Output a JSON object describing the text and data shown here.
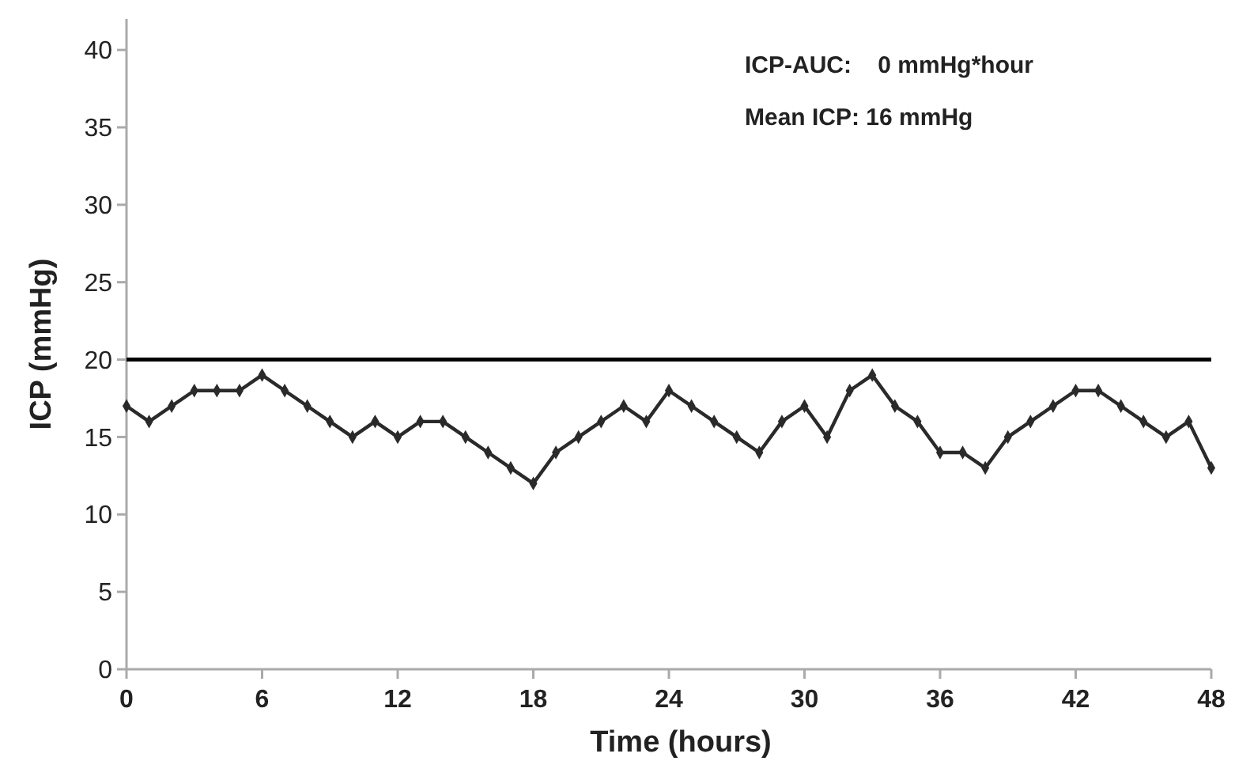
{
  "chart_data": {
    "type": "line",
    "xlabel": "Time (hours)",
    "ylabel": "ICP (mmHg)",
    "x": [
      0,
      1,
      2,
      3,
      4,
      5,
      6,
      7,
      8,
      9,
      10,
      11,
      12,
      13,
      14,
      15,
      16,
      17,
      18,
      19,
      20,
      21,
      22,
      23,
      24,
      25,
      26,
      27,
      28,
      29,
      30,
      31,
      32,
      33,
      34,
      35,
      36,
      37,
      38,
      39,
      40,
      41,
      42,
      43,
      44,
      45,
      46,
      47,
      48
    ],
    "series": [
      {
        "color": "#2a2a2a",
        "values": [
          17,
          16,
          17,
          18,
          18,
          18,
          19,
          18,
          17,
          16,
          15,
          16,
          15,
          16,
          16,
          15,
          14,
          13,
          12,
          14,
          15,
          16,
          17,
          16,
          18,
          17,
          16,
          15,
          14,
          16,
          17,
          15,
          18,
          19,
          17,
          16,
          14,
          14,
          13,
          15,
          16,
          17,
          18,
          18,
          17,
          16,
          15,
          16,
          13
        ]
      }
    ],
    "xlim": [
      0,
      48
    ],
    "xticks": [
      0,
      6,
      12,
      18,
      24,
      30,
      36,
      42,
      48
    ],
    "ylim": [
      0,
      42
    ],
    "yticks": [
      0,
      5,
      10,
      15,
      20,
      25,
      30,
      35,
      40
    ],
    "ref_lines": [
      {
        "axis": "y",
        "value": 20,
        "color": "#000000"
      }
    ],
    "annotations": [
      "ICP-AUC:    0 mmHg*hour",
      "Mean ICP: 16 mmHg"
    ],
    "grid": false,
    "marker": "diamond",
    "line_style": "solid"
  }
}
